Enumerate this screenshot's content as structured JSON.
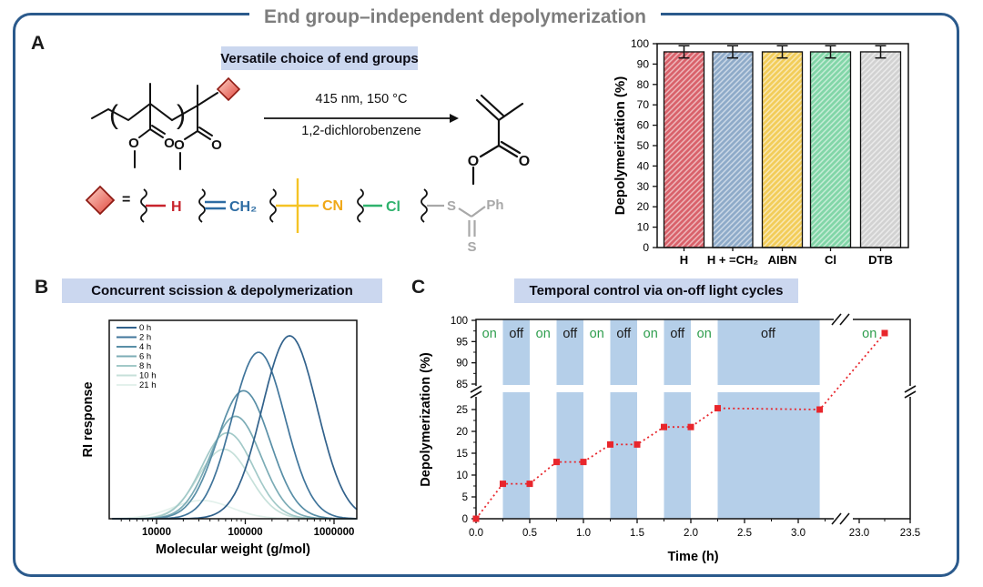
{
  "figure": {
    "title": "End group–independent depolymerization",
    "border_color": "#2b5a8c",
    "title_color": "#7d7d7d",
    "banner_bg": "#cbd7ef"
  },
  "panel_a": {
    "label": "A",
    "banner": "Versatile choice of end groups",
    "reaction": {
      "above_arrow": "415 nm, 150 °C",
      "below_arrow": "1,2-dichlorobenzene"
    },
    "polymer": {
      "paren_open": "(",
      "paren_close": ")",
      "o_left_1": "O",
      "o_right_1": "O",
      "o_left_2": "O",
      "o_right_2": "O"
    },
    "product": {
      "o_left": "O",
      "o_right": "O"
    },
    "end_groups": {
      "eq": "=",
      "h": {
        "label": "H",
        "color": "#c8232c"
      },
      "ch2": {
        "label": "CH₂",
        "color": "#2d6ca3"
      },
      "cn": {
        "label": "CN",
        "color": "#f0a819"
      },
      "cl": {
        "label": "Cl",
        "color": "#2fb26d"
      },
      "dtb": {
        "s_top": "S",
        "s_bottom": "S",
        "ph": "Ph",
        "color": "#a8a8a8"
      }
    }
  },
  "panel_b": {
    "label": "B",
    "banner": "Concurrent scission & depolymerization"
  },
  "panel_c": {
    "label": "C",
    "banner": "Temporal control via on-off light cycles"
  },
  "chart_data": [
    {
      "id": "end-group-bars",
      "type": "bar",
      "categories": [
        "H",
        "H + =CH₂",
        "AIBN",
        "Cl",
        "DTB"
      ],
      "values": [
        96,
        96,
        96,
        96,
        96
      ],
      "errors": [
        3,
        3,
        3,
        3,
        3
      ],
      "bar_colors": [
        "#d9626b",
        "#8fabc9",
        "#f2cd5a",
        "#82d6a8",
        "#d2d2d2"
      ],
      "ylabel": "Depolymerization (%)",
      "ylim": [
        0,
        100
      ],
      "ytick_step": 10,
      "hatch": true,
      "legend_position": "none",
      "grid": false
    },
    {
      "id": "gpc-traces",
      "type": "line",
      "xlabel": "Molecular weight (g/mol)",
      "ylabel": "RI response",
      "x_scale": "log",
      "xlim_log": [
        3.5,
        6.26
      ],
      "x_ticks": [
        {
          "value": 10000,
          "label": "10000"
        },
        {
          "value": 100000,
          "label": "100000"
        },
        {
          "value": 1000000,
          "label": "1000000"
        }
      ],
      "legend_position": "top-left",
      "grid": false,
      "series": [
        {
          "name": "0 h",
          "color": "#31618b",
          "peak_log_mw": 5.5,
          "peak_mw": 320000,
          "height": 1.0,
          "sigma_log": 0.31
        },
        {
          "name": "2 h",
          "color": "#40759b",
          "peak_log_mw": 5.15,
          "peak_mw": 140000,
          "height": 0.91,
          "sigma_log": 0.3
        },
        {
          "name": "4 h",
          "color": "#598fa7",
          "peak_log_mw": 4.98,
          "peak_mw": 95000,
          "height": 0.7,
          "sigma_log": 0.3
        },
        {
          "name": "6 h",
          "color": "#7cacb6",
          "peak_log_mw": 4.89,
          "peak_mw": 78000,
          "height": 0.56,
          "sigma_log": 0.29
        },
        {
          "name": "8 h",
          "color": "#a2c9c8",
          "peak_log_mw": 4.8,
          "peak_mw": 63000,
          "height": 0.47,
          "sigma_log": 0.29
        },
        {
          "name": "10 h",
          "color": "#c6e0da",
          "peak_log_mw": 4.76,
          "peak_mw": 58000,
          "height": 0.38,
          "sigma_log": 0.29
        },
        {
          "name": "21 h",
          "color": "#e3f1ec",
          "peak_log_mw": 4.51,
          "peak_mw": 32000,
          "height": 0.1,
          "sigma_log": 0.33
        }
      ]
    },
    {
      "id": "on-off-cycles",
      "type": "line",
      "xlabel": "Time (h)",
      "ylabel": "Depolymerization (%)",
      "line_color": "#e8262c",
      "line_style": "dotted",
      "marker": "square",
      "points": [
        [
          0,
          0
        ],
        [
          0.25,
          8
        ],
        [
          0.5,
          8
        ],
        [
          0.75,
          13
        ],
        [
          1.0,
          13
        ],
        [
          1.25,
          17
        ],
        [
          1.5,
          17
        ],
        [
          1.75,
          21
        ],
        [
          2.0,
          21
        ],
        [
          2.25,
          25.3
        ],
        [
          3.2,
          25
        ],
        [
          23.25,
          97
        ]
      ],
      "x_ticks": [
        {
          "t": 0,
          "label": "0.0"
        },
        {
          "t": 0.5,
          "label": "0.5"
        },
        {
          "t": 1,
          "label": "1.0"
        },
        {
          "t": 1.5,
          "label": "1.5"
        },
        {
          "t": 2,
          "label": "2.0"
        },
        {
          "t": 2.5,
          "label": "2.5"
        },
        {
          "t": 3,
          "label": "3.0"
        },
        {
          "t": 23,
          "label": "23.0"
        },
        {
          "t": 23.5,
          "label": "23.5"
        }
      ],
      "x_minor_ticks": [
        0.25,
        0.75,
        1.25,
        1.75,
        2.25,
        2.75,
        3.25,
        23.25
      ],
      "y_ticks": [
        {
          "v": 0,
          "label": "0"
        },
        {
          "v": 5,
          "label": "5"
        },
        {
          "v": 10,
          "label": "10"
        },
        {
          "v": 15,
          "label": "15"
        },
        {
          "v": 20,
          "label": "20"
        },
        {
          "v": 25,
          "label": "25"
        },
        {
          "v": 85,
          "label": "85"
        },
        {
          "v": 90,
          "label": "90"
        },
        {
          "v": 95,
          "label": "95"
        },
        {
          "v": 100,
          "label": "100"
        }
      ],
      "y_minor_ticks": [
        2.5,
        7.5,
        12.5,
        17.5,
        22.5,
        87.5,
        92.5,
        97.5
      ],
      "axis_break": {
        "x_between": [
          3.3,
          23.0
        ],
        "y_between": [
          28,
          84
        ]
      },
      "off_bands": [
        [
          0.25,
          0.5
        ],
        [
          0.75,
          1.0
        ],
        [
          1.25,
          1.5
        ],
        [
          1.75,
          2.0
        ],
        [
          2.25,
          3.2
        ]
      ],
      "band_color": "#b5cfe9",
      "on_color": "#2f9e4e",
      "off_label_color": "#1a1a1a",
      "phase_labels": [
        {
          "t": 0.125,
          "text": "on"
        },
        {
          "t": 0.375,
          "text": "off"
        },
        {
          "t": 0.625,
          "text": "on"
        },
        {
          "t": 0.875,
          "text": "off"
        },
        {
          "t": 1.125,
          "text": "on"
        },
        {
          "t": 1.375,
          "text": "off"
        },
        {
          "t": 1.625,
          "text": "on"
        },
        {
          "t": 1.875,
          "text": "off"
        },
        {
          "t": 2.125,
          "text": "on"
        },
        {
          "t": 2.72,
          "text": "off"
        },
        {
          "t": 23.1,
          "text": "on"
        }
      ]
    }
  ]
}
